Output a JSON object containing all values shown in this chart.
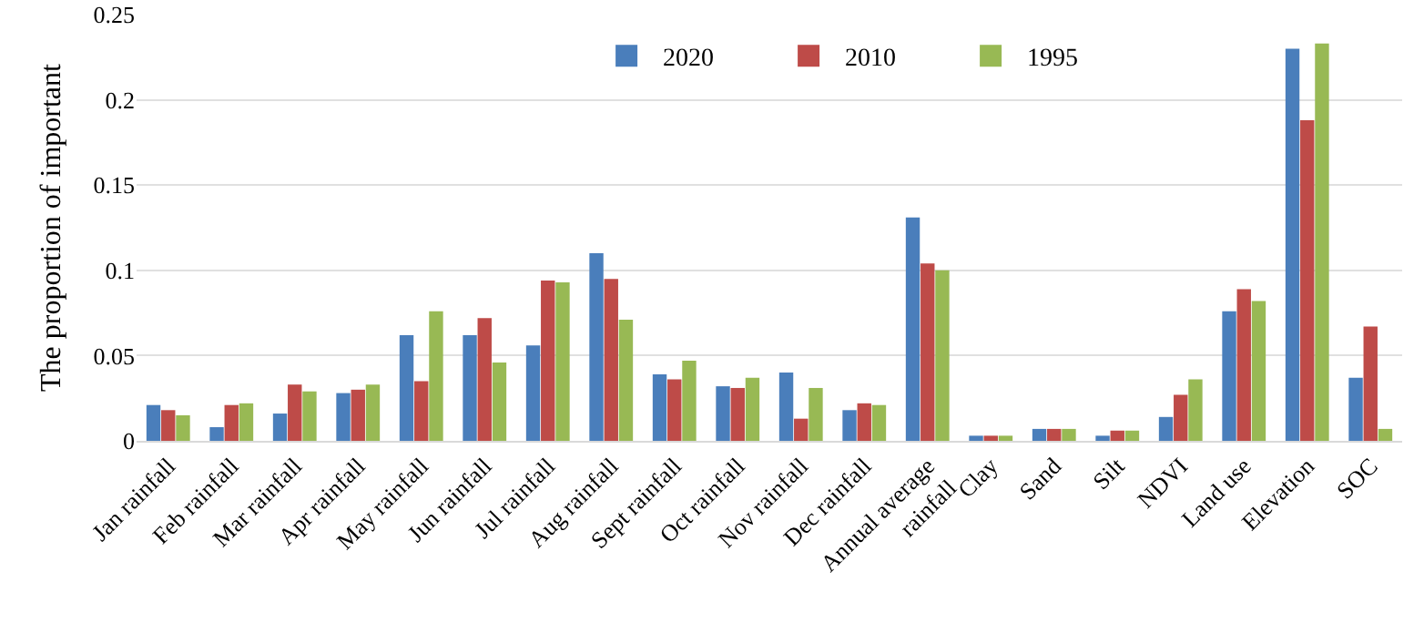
{
  "chart_data": {
    "type": "bar",
    "ylabel": "The proportion of important",
    "categories": [
      "Jan rainfall",
      "Feb rainfall",
      "Mar rainfall",
      "Apr rainfall",
      "May rainfall",
      "Jun rainfall",
      "Jul rainfall",
      "Aug rainfall",
      "Sept rainfall",
      "Oct rainfall",
      "Nov rainfall",
      "Dec rainfall",
      "Annual average rainfall",
      "Clay",
      "Sand",
      "Silt",
      "NDVI",
      "Land use",
      "Elevation",
      "SOC"
    ],
    "series": [
      {
        "name": "2020",
        "color": "#4a7ebb",
        "values": [
          0.021,
          0.008,
          0.016,
          0.028,
          0.062,
          0.062,
          0.056,
          0.11,
          0.039,
          0.032,
          0.04,
          0.018,
          0.131,
          0.003,
          0.007,
          0.003,
          0.014,
          0.076,
          0.23,
          0.037
        ]
      },
      {
        "name": "2010",
        "color": "#be4b48",
        "values": [
          0.018,
          0.021,
          0.033,
          0.03,
          0.035,
          0.072,
          0.094,
          0.095,
          0.036,
          0.031,
          0.013,
          0.022,
          0.104,
          0.003,
          0.007,
          0.006,
          0.027,
          0.089,
          0.188,
          0.067
        ]
      },
      {
        "name": "1995",
        "color": "#98b954",
        "values": [
          0.015,
          0.022,
          0.029,
          0.033,
          0.076,
          0.046,
          0.093,
          0.071,
          0.047,
          0.037,
          0.031,
          0.021,
          0.1,
          0.003,
          0.007,
          0.006,
          0.036,
          0.082,
          0.233,
          0.007
        ]
      }
    ],
    "ylim": [
      0,
      0.25
    ],
    "yticks": [
      0,
      0.05,
      0.1,
      0.15,
      0.2,
      0.25
    ],
    "grid": "y",
    "legend": "top right"
  }
}
